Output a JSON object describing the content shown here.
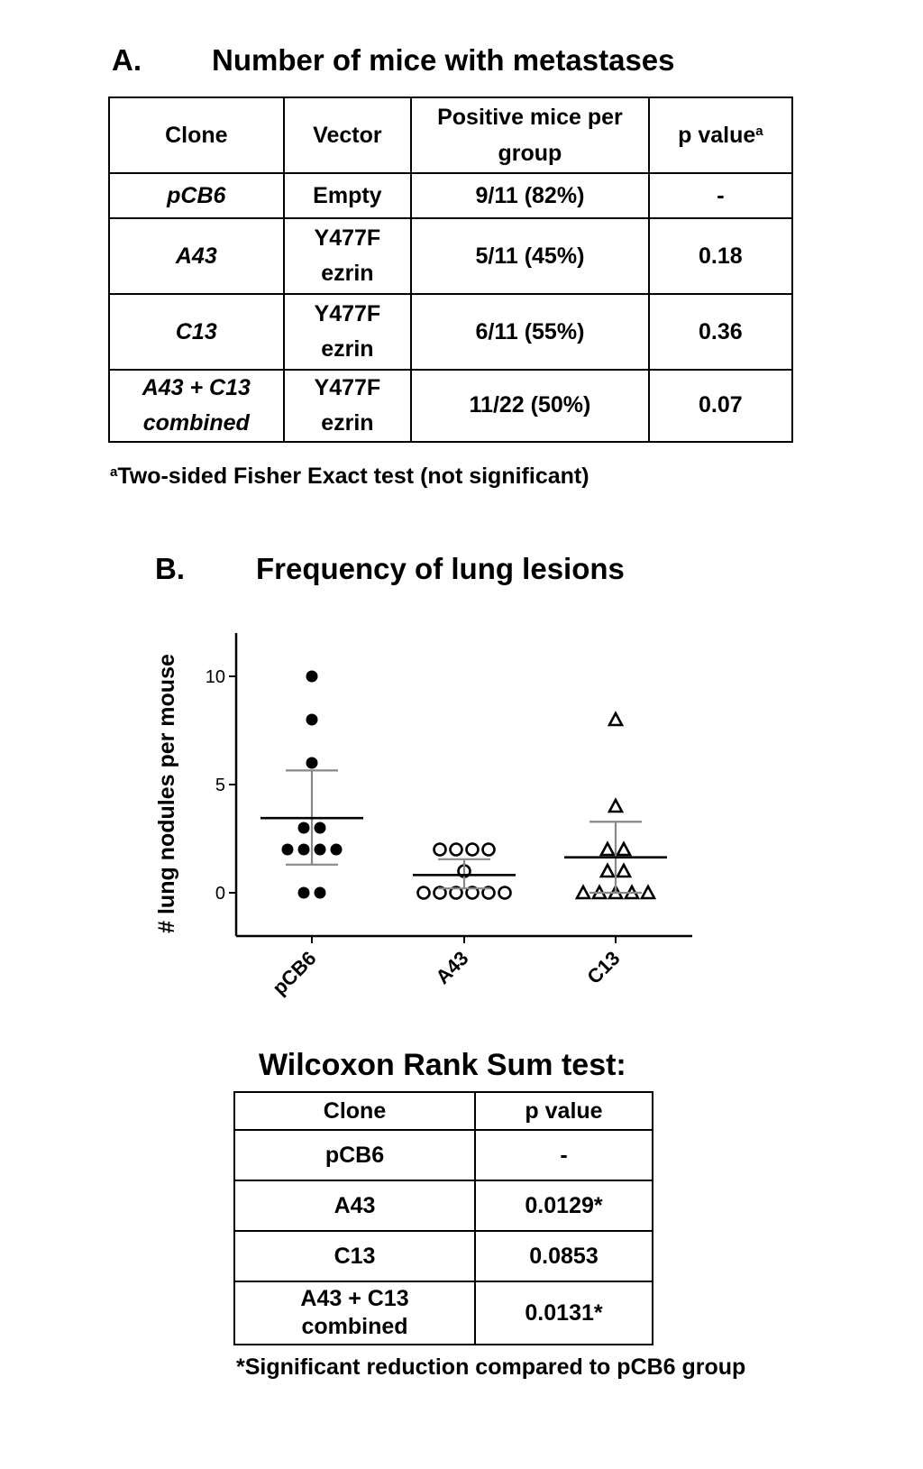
{
  "panel_a": {
    "letter": "A.",
    "title": "Number of mice with metastases",
    "headers": [
      "Clone",
      "Vector",
      "Positive mice per group",
      "p value"
    ],
    "header_superscript": "a",
    "rows": [
      {
        "clone": "pCB6",
        "vector": "Empty",
        "positive": "9/11 (82%)",
        "p": "-"
      },
      {
        "clone": "A43",
        "vector": "Y477F ezrin",
        "positive": "5/11 (45%)",
        "p": "0.18"
      },
      {
        "clone": "C13",
        "vector": "Y477F ezrin",
        "positive": "6/11 (55%)",
        "p": "0.36"
      },
      {
        "clone": "A43 + C13 combined",
        "vector": "Y477F ezrin",
        "positive": "11/22 (50%)",
        "p": "0.07"
      }
    ],
    "footnote_marker": "a",
    "footnote": "Two-sided Fisher Exact test (not significant)"
  },
  "panel_b": {
    "letter": "B.",
    "title": "Frequency of lung lesions"
  },
  "chart_data": {
    "type": "scatter",
    "title": "Frequency of lung lesions",
    "xlabel": "",
    "ylabel": "# lung nodules per mouse",
    "categories": [
      "pCB6",
      "A43",
      "C13"
    ],
    "ylim": [
      -2,
      12
    ],
    "yticks": [
      0,
      5,
      10
    ],
    "grid": false,
    "series": [
      {
        "category": "pCB6",
        "marker": "filled-circle",
        "values": [
          10,
          8,
          6,
          3,
          3,
          2,
          2,
          2,
          2,
          0,
          0
        ],
        "mean": 3.45,
        "sd_low": 1.3,
        "sd_high": 5.65
      },
      {
        "category": "A43",
        "marker": "open-circle",
        "values": [
          2,
          2,
          2,
          2,
          1,
          0,
          0,
          0,
          0,
          0,
          0
        ],
        "mean": 0.82,
        "sd_low": 0.2,
        "sd_high": 1.55
      },
      {
        "category": "C13",
        "marker": "open-triangle",
        "values": [
          8,
          4,
          2,
          2,
          1,
          1,
          0,
          0,
          0,
          0,
          0
        ],
        "mean": 1.64,
        "sd_low": 0.0,
        "sd_high": 3.28
      }
    ]
  },
  "wilcoxon": {
    "title": "Wilcoxon Rank Sum test:",
    "headers": [
      "Clone",
      "p value"
    ],
    "rows": [
      {
        "clone": "pCB6",
        "p": "-"
      },
      {
        "clone": "A43",
        "p": "0.0129*"
      },
      {
        "clone": "C13",
        "p": "0.0853"
      },
      {
        "clone": "A43 + C13 combined",
        "p": "0.0131*"
      }
    ],
    "footnote": "*Significant reduction compared to pCB6 group"
  }
}
